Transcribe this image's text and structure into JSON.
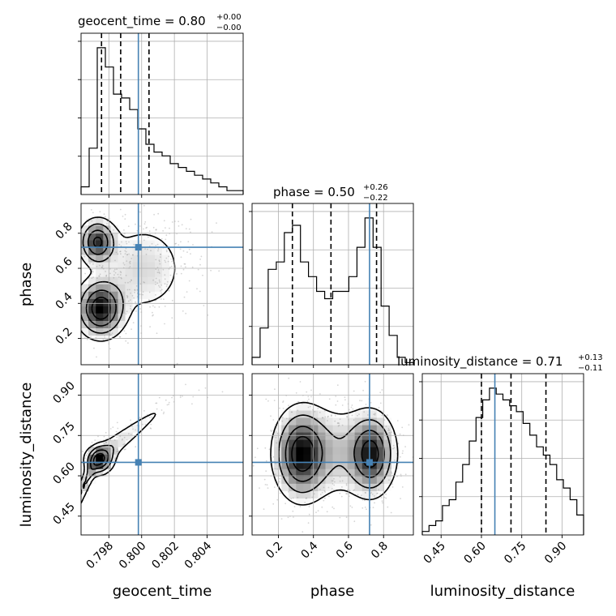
{
  "chart_data": {
    "type": "corner",
    "parameters": [
      "geocent_time",
      "phase",
      "luminosity_distance"
    ],
    "truths": {
      "geocent_time": 0.7998,
      "phase": 0.72,
      "luminosity_distance": 0.65
    },
    "colors": {
      "truth": "#4682b4",
      "line": "#000000",
      "grid": "#b0b0b0"
    },
    "titles": {
      "geocent_time": {
        "prefix": "geocent_time = 0.80",
        "plus": "+0.00",
        "minus": "−0.00"
      },
      "phase": {
        "prefix": "phase = 0.50",
        "plus": "+0.26",
        "minus": "−0.22"
      },
      "luminosity_distance": {
        "prefix": "luminosity_distance = 0.71",
        "plus": "+0.13",
        "minus": "−0.11"
      }
    },
    "axes": {
      "geocent_time": {
        "range": [
          0.7963,
          0.8062
        ],
        "ticks": [
          0.798,
          0.8,
          0.802,
          0.804
        ],
        "tick_labels": [
          "0.798",
          "0.800",
          "0.802",
          "0.804"
        ],
        "label": "geocent_time"
      },
      "phase": {
        "range": [
          0.05,
          0.97
        ],
        "ticks": [
          0.2,
          0.4,
          0.6,
          0.8
        ],
        "tick_labels": [
          "0.2",
          "0.4",
          "0.6",
          "0.8"
        ],
        "label": "phase"
      },
      "luminosity_distance": {
        "range": [
          0.38,
          0.98
        ],
        "ticks": [
          0.45,
          0.6,
          0.75,
          0.9
        ],
        "tick_labels": [
          "0.45",
          "0.60",
          "0.75",
          "0.90"
        ],
        "label": "luminosity_distance"
      }
    },
    "histograms": {
      "geocent_time": {
        "edges_range": [
          0.7963,
          0.8062
        ],
        "bins": 20,
        "counts": [
          2,
          12,
          38,
          33,
          26,
          25,
          22,
          17,
          13,
          11,
          10,
          8,
          7,
          6,
          5,
          4,
          3,
          2,
          1,
          1
        ],
        "quantiles": [
          0.79755,
          0.79872,
          0.80045
        ]
      },
      "phase": {
        "edges_range": [
          0.05,
          0.97
        ],
        "bins": 20,
        "counts": [
          1,
          5,
          13,
          14,
          18,
          19,
          14,
          12,
          10,
          9,
          10,
          10,
          12,
          16,
          20,
          16,
          8,
          4,
          1,
          0.3
        ],
        "quantiles": [
          0.28,
          0.5,
          0.76
        ]
      },
      "luminosity_distance": {
        "edges_range": [
          0.38,
          0.98
        ],
        "bins": 24,
        "counts": [
          0.3,
          0.8,
          1.2,
          2.5,
          3,
          4.5,
          6,
          8,
          10,
          11.5,
          12.5,
          12,
          11.5,
          11,
          10.5,
          9.5,
          8.5,
          7.5,
          6.8,
          6,
          4.7,
          4,
          3,
          1.7
        ],
        "quantiles": [
          0.6,
          0.71,
          0.84
        ]
      }
    },
    "densities": {
      "phase_vs_geocent_time": {
        "x": "geocent_time",
        "y": "phase",
        "components": [
          {
            "mx": 0.7975,
            "my": 0.37,
            "sx": 0.0008,
            "sy": 0.09,
            "w": 1.0
          },
          {
            "mx": 0.7973,
            "my": 0.75,
            "sx": 0.0006,
            "sy": 0.07,
            "w": 0.85
          },
          {
            "mx": 0.8001,
            "my": 0.6,
            "sx": 0.0016,
            "sy": 0.16,
            "w": 0.25
          }
        ]
      },
      "luminosity_distance_vs_geocent_time": {
        "x": "geocent_time",
        "y": "luminosity_distance",
        "ridge": [
          [
            0.7963,
            0.54
          ],
          [
            0.7972,
            0.655
          ],
          [
            0.7985,
            0.72
          ],
          [
            0.8,
            0.79
          ],
          [
            0.8015,
            0.86
          ],
          [
            0.803,
            0.92
          ],
          [
            0.8055,
            0.98
          ]
        ],
        "components": [
          {
            "mx": 0.7974,
            "my": 0.66,
            "sx": 0.0005,
            "sy": 0.03,
            "w": 1.0
          }
        ]
      },
      "luminosity_distance_vs_phase": {
        "x": "phase",
        "y": "luminosity_distance",
        "components": [
          {
            "mx": 0.33,
            "my": 0.68,
            "sx": 0.08,
            "sy": 0.09,
            "w": 1.0
          },
          {
            "mx": 0.73,
            "my": 0.68,
            "sx": 0.07,
            "sy": 0.08,
            "w": 0.95
          },
          {
            "mx": 0.52,
            "my": 0.69,
            "sx": 0.18,
            "sy": 0.1,
            "w": 0.35
          }
        ]
      }
    }
  }
}
